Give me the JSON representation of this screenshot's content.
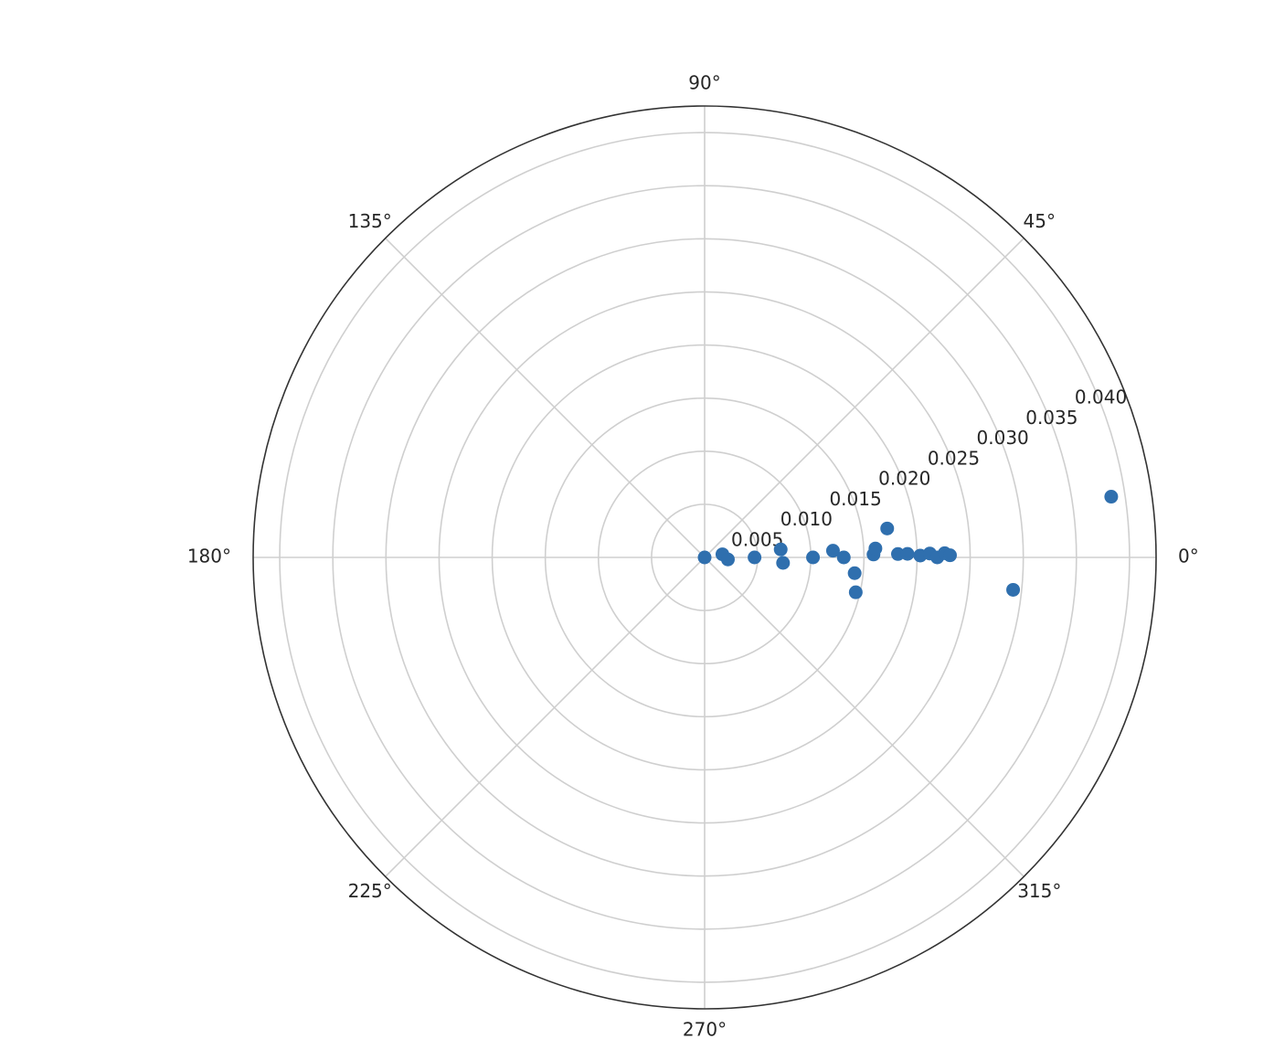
{
  "chart_data": {
    "type": "scatter",
    "coordinate_system": "polar",
    "title": "",
    "angular_tick_labels": [
      "0°",
      "45°",
      "90°",
      "135°",
      "180°",
      "225°",
      "270°",
      "315°"
    ],
    "angular_ticks_deg": [
      0,
      45,
      90,
      135,
      180,
      225,
      270,
      315
    ],
    "radial_tick_labels": [
      "0.005",
      "0.010",
      "0.015",
      "0.020",
      "0.025",
      "0.030",
      "0.035",
      "0.040"
    ],
    "radial_ticks": [
      0.005,
      0.01,
      0.015,
      0.02,
      0.025,
      0.03,
      0.035,
      0.04
    ],
    "rlim": [
      0,
      0.0425
    ],
    "grid": true,
    "marker_color": "#2f6fae",
    "series": [
      {
        "points": [
          {
            "theta_deg": 0.0,
            "r": 0.0
          },
          {
            "theta_deg": 10.0,
            "r": 0.0017
          },
          {
            "theta_deg": 355.0,
            "r": 0.0022
          },
          {
            "theta_deg": 0.0,
            "r": 0.0047
          },
          {
            "theta_deg": 6.0,
            "r": 0.0072
          },
          {
            "theta_deg": 356.0,
            "r": 0.0074
          },
          {
            "theta_deg": 0.0,
            "r": 0.0102
          },
          {
            "theta_deg": 3.0,
            "r": 0.0121
          },
          {
            "theta_deg": 0.0,
            "r": 0.0131
          },
          {
            "theta_deg": 354.0,
            "r": 0.0142
          },
          {
            "theta_deg": 347.0,
            "r": 0.0146
          },
          {
            "theta_deg": 1.0,
            "r": 0.0159
          },
          {
            "theta_deg": 3.0,
            "r": 0.0161
          },
          {
            "theta_deg": 9.0,
            "r": 0.0174
          },
          {
            "theta_deg": 1.0,
            "r": 0.0182
          },
          {
            "theta_deg": 1.0,
            "r": 0.0191
          },
          {
            "theta_deg": 0.5,
            "r": 0.0203
          },
          {
            "theta_deg": 1.0,
            "r": 0.0212
          },
          {
            "theta_deg": 0.0,
            "r": 0.0219
          },
          {
            "theta_deg": 1.0,
            "r": 0.0226
          },
          {
            "theta_deg": 0.5,
            "r": 0.0231
          },
          {
            "theta_deg": 354.0,
            "r": 0.0292
          },
          {
            "theta_deg": 8.5,
            "r": 0.0387
          }
        ]
      }
    ]
  }
}
